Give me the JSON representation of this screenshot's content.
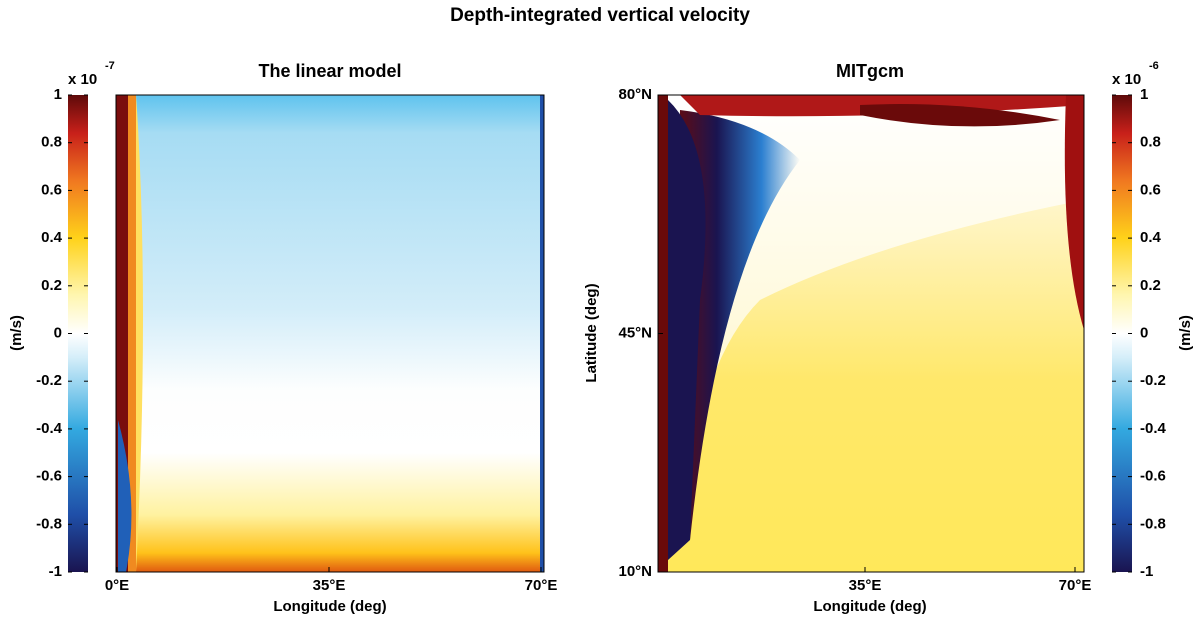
{
  "title": "Depth-integrated vertical velocity",
  "chart_data": [
    {
      "type": "heatmap",
      "title": "The linear model",
      "xlabel": "Longitude (deg)",
      "xlim": [
        0,
        70
      ],
      "xticks": [
        {
          "value": 0,
          "label": "0°E"
        },
        {
          "value": 35,
          "label": "35°E"
        },
        {
          "value": 70,
          "label": "70°E"
        }
      ],
      "colorbar": {
        "label": "(m/s)",
        "scale_base": "x 10",
        "scale_exponent": "-7",
        "lim": [
          -1,
          1
        ],
        "ticks": [
          -1,
          -0.8,
          -0.6,
          -0.4,
          -0.2,
          0,
          0.2,
          0.4,
          0.6,
          0.8,
          1
        ],
        "side": "left"
      }
    },
    {
      "type": "heatmap",
      "title": "MITgcm",
      "xlabel": "Longitude (deg)",
      "ylabel": "Latitude (deg)",
      "xlim": [
        0,
        70
      ],
      "ylim": [
        10,
        80
      ],
      "xticks": [
        {
          "value": 35,
          "label": "35°E"
        },
        {
          "value": 70,
          "label": "70°E"
        }
      ],
      "yticks": [
        {
          "value": 10,
          "label": "10°N"
        },
        {
          "value": 45,
          "label": "45°N"
        },
        {
          "value": 80,
          "label": "80°N"
        }
      ],
      "colorbar": {
        "label": "(m/s)",
        "scale_base": "x 10",
        "scale_exponent": "-6",
        "lim": [
          -1,
          1
        ],
        "ticks": [
          -1,
          -0.8,
          -0.6,
          -0.4,
          -0.2,
          0,
          0.2,
          0.4,
          0.6,
          0.8,
          1
        ],
        "side": "right"
      }
    }
  ]
}
